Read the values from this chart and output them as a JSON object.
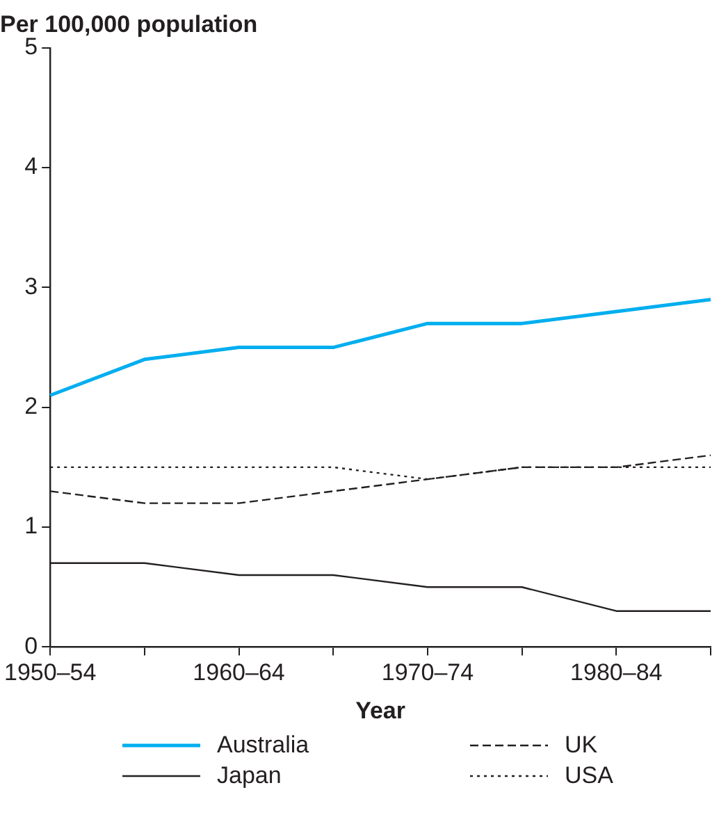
{
  "chart_data": {
    "type": "line",
    "ylabel": "Per 100,000 population",
    "xlabel": "Year",
    "categories": [
      "1950–54",
      null,
      "1960–64",
      null,
      "1970–74",
      null,
      "1980–84",
      null
    ],
    "series": [
      {
        "name": "Australia",
        "color": "#00aeef",
        "line_style": "solid",
        "values": [
          2.1,
          2.4,
          2.5,
          2.5,
          2.7,
          2.7,
          2.8,
          2.9
        ]
      },
      {
        "name": "Japan",
        "color": "#231f20",
        "line_style": "solid",
        "values": [
          0.7,
          0.7,
          0.6,
          0.6,
          0.5,
          0.5,
          0.3,
          0.3
        ]
      },
      {
        "name": "UK",
        "color": "#231f20",
        "line_style": "dashed",
        "values": [
          1.3,
          1.2,
          1.2,
          1.3,
          1.4,
          1.5,
          1.5,
          1.6
        ]
      },
      {
        "name": "USA",
        "color": "#231f20",
        "line_style": "dotted",
        "values": [
          1.5,
          1.5,
          1.5,
          1.5,
          1.4,
          1.5,
          1.5,
          1.5
        ]
      }
    ],
    "ylim": [
      0,
      5
    ],
    "yticks": [
      0,
      1,
      2,
      3,
      4,
      5
    ],
    "grid": false,
    "legend": "bottom",
    "marker": "none"
  }
}
